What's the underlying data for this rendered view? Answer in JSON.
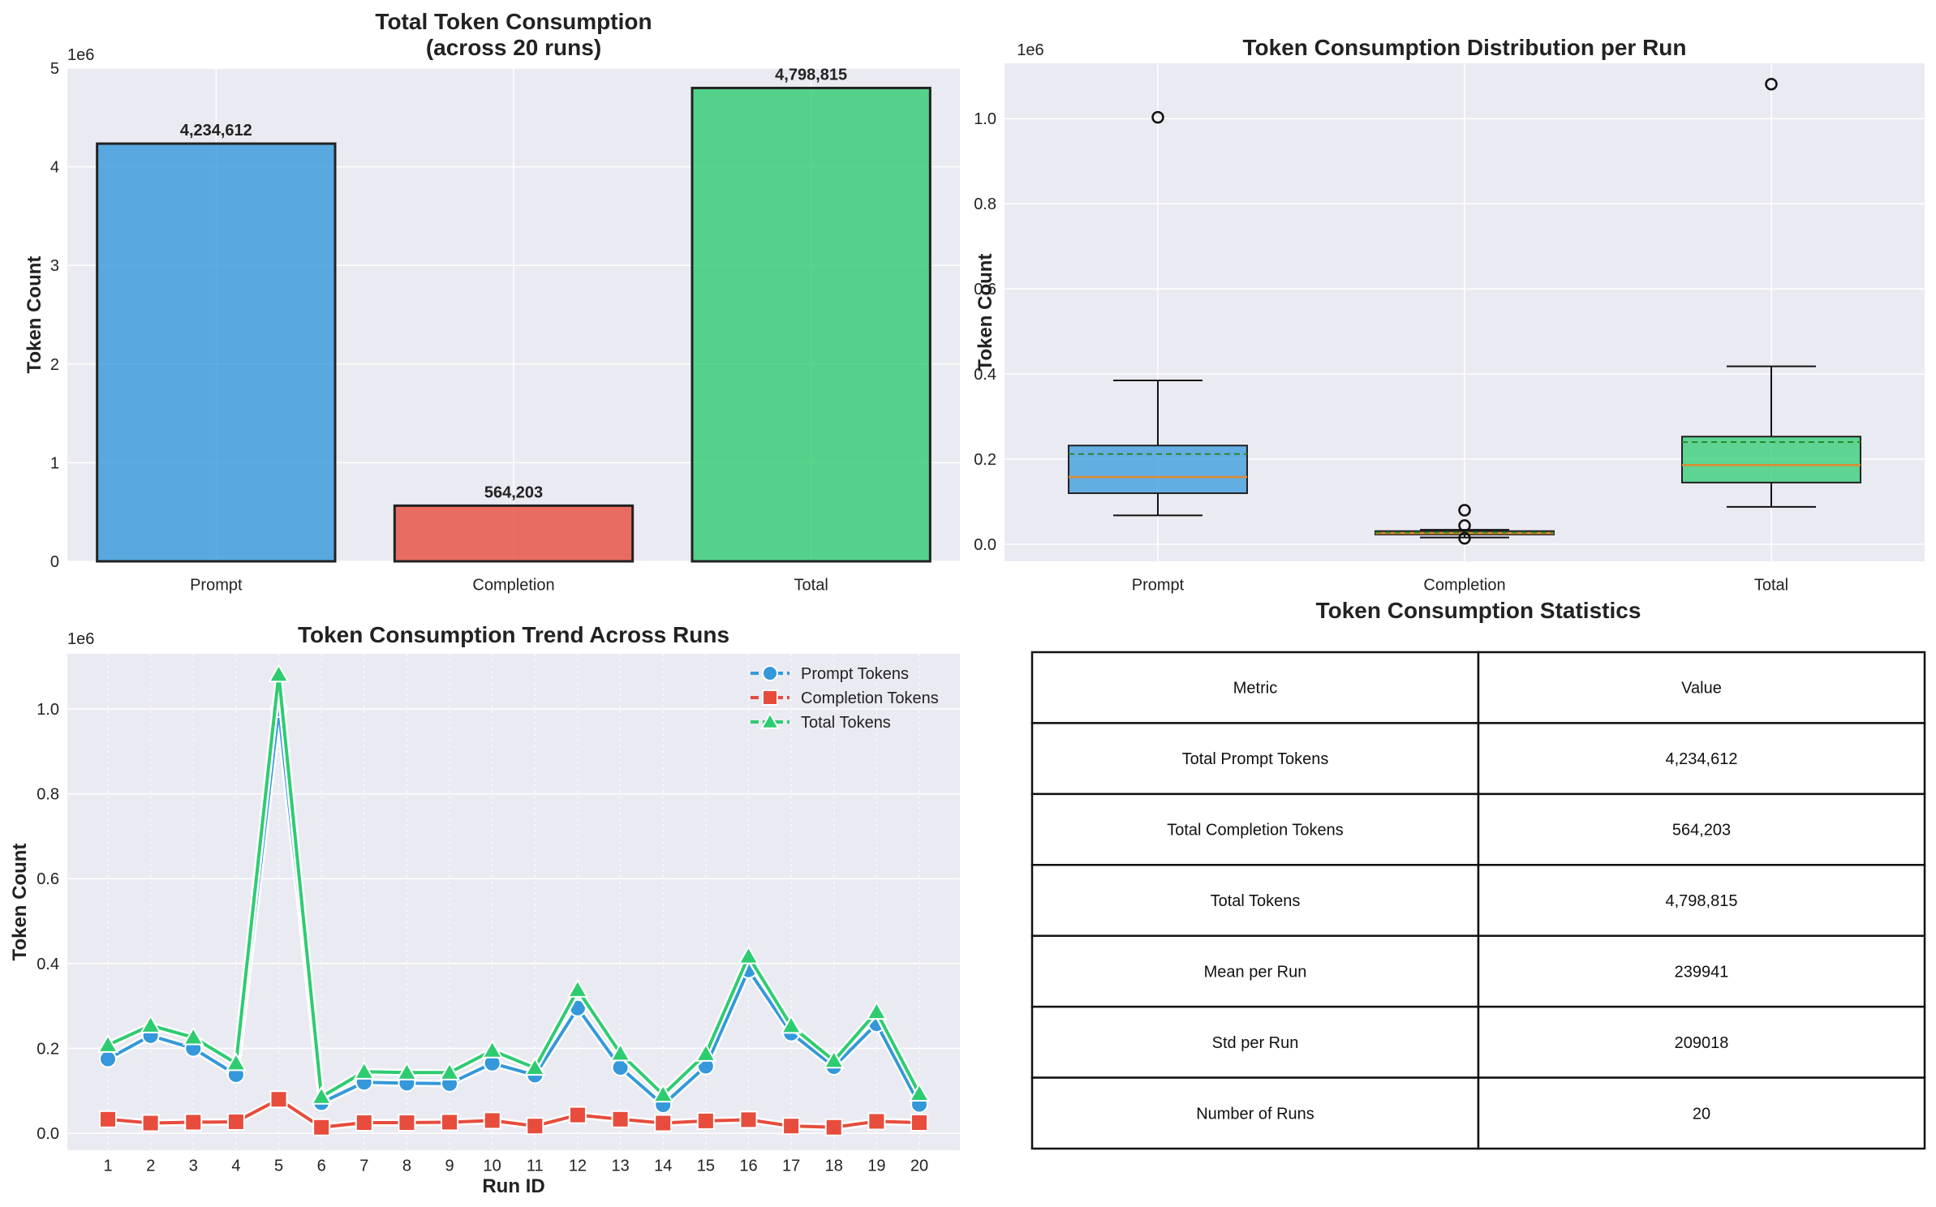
{
  "colors": {
    "prompt": "#3498db",
    "completion": "#e74c3c",
    "total": "#2ecc71",
    "panel_bg": "#eaeaf2",
    "median": "#e08a2c",
    "mean": "#2a8a2a"
  },
  "chart_data": [
    {
      "type": "bar",
      "title": "Total Token Consumption\n(across 20 runs)",
      "title_lines": [
        "Total Token Consumption",
        "(across 20 runs)"
      ],
      "xlabel": "",
      "ylabel": "Token Count",
      "scale_label": "1e6",
      "categories": [
        "Prompt",
        "Completion",
        "Total"
      ],
      "values": [
        4234612,
        564203,
        4798815
      ],
      "value_labels": [
        "4,234,612",
        "564,203",
        "4,798,815"
      ],
      "ylim": [
        0,
        5000000
      ],
      "yticks": [
        0,
        1000000,
        2000000,
        3000000,
        4000000,
        5000000
      ],
      "ytick_labels": [
        "0",
        "1",
        "2",
        "3",
        "4",
        "5"
      ],
      "grid": true
    },
    {
      "type": "box",
      "title": "Token Consumption Distribution per Run",
      "xlabel": "",
      "ylabel": "Token Count",
      "scale_label": "1e6",
      "categories": [
        "Prompt",
        "Completion",
        "Total"
      ],
      "boxes": [
        {
          "name": "Prompt",
          "whisker_low": 68000,
          "q1": 120000,
          "median": 158000,
          "mean": 212000,
          "q3": 232000,
          "whisker_high": 385000,
          "outliers": [
            1003000
          ]
        },
        {
          "name": "Completion",
          "whisker_low": 16000,
          "q1": 23000,
          "median": 26000,
          "mean": 28000,
          "q3": 31000,
          "whisker_high": 34000,
          "outliers": [
            80000,
            44000,
            14000
          ]
        },
        {
          "name": "Total",
          "whisker_low": 88000,
          "q1": 145000,
          "median": 186000,
          "mean": 240000,
          "q3": 253000,
          "whisker_high": 418000,
          "outliers": [
            1081000
          ]
        }
      ],
      "ylim": [
        -40000,
        1130000
      ],
      "yticks": [
        0,
        200000,
        400000,
        600000,
        800000,
        1000000
      ],
      "ytick_labels": [
        "0.0",
        "0.2",
        "0.4",
        "0.6",
        "0.8",
        "1.0"
      ],
      "grid": true
    },
    {
      "type": "line",
      "title": "Token Consumption Trend Across Runs",
      "xlabel": "Run ID",
      "ylabel": "Token Count",
      "scale_label": "1e6",
      "x": [
        1,
        2,
        3,
        4,
        5,
        6,
        7,
        8,
        9,
        10,
        11,
        12,
        13,
        14,
        15,
        16,
        17,
        18,
        19,
        20
      ],
      "series": [
        {
          "name": "Prompt Tokens",
          "marker": "circle",
          "values": [
            175000,
            230000,
            200000,
            138000,
            1000000,
            72000,
            120000,
            118000,
            117000,
            165000,
            137000,
            295000,
            155000,
            67000,
            158000,
            385000,
            236000,
            157000,
            258000,
            68000
          ]
        },
        {
          "name": "Completion Tokens",
          "marker": "square",
          "values": [
            33000,
            24000,
            26000,
            27000,
            80000,
            14000,
            25000,
            25000,
            26000,
            30000,
            17000,
            43000,
            33000,
            24000,
            29000,
            32000,
            17000,
            14000,
            28000,
            25000
          ]
        },
        {
          "name": "Total Tokens",
          "marker": "triangle",
          "values": [
            208000,
            254000,
            226000,
            165000,
            1081000,
            86000,
            145000,
            143000,
            143000,
            195000,
            154000,
            338000,
            188000,
            91000,
            187000,
            417000,
            253000,
            171000,
            286000,
            93000
          ]
        }
      ],
      "ylim": [
        -40000,
        1130000
      ],
      "yticks": [
        0,
        200000,
        400000,
        600000,
        800000,
        1000000
      ],
      "ytick_labels": [
        "0.0",
        "0.2",
        "0.4",
        "0.6",
        "0.8",
        "1.0"
      ],
      "legend": "top-right",
      "grid": true
    },
    {
      "type": "table",
      "title": "Token Consumption Statistics",
      "columns": [
        "Metric",
        "Value"
      ],
      "rows": [
        [
          "Total Prompt Tokens",
          "4,234,612"
        ],
        [
          "Total Completion Tokens",
          "564,203"
        ],
        [
          "Total Tokens",
          "4,798,815"
        ],
        [
          "Mean per Run",
          "239941"
        ],
        [
          "Std per Run",
          "209018"
        ],
        [
          "Number of Runs",
          "20"
        ]
      ]
    }
  ]
}
